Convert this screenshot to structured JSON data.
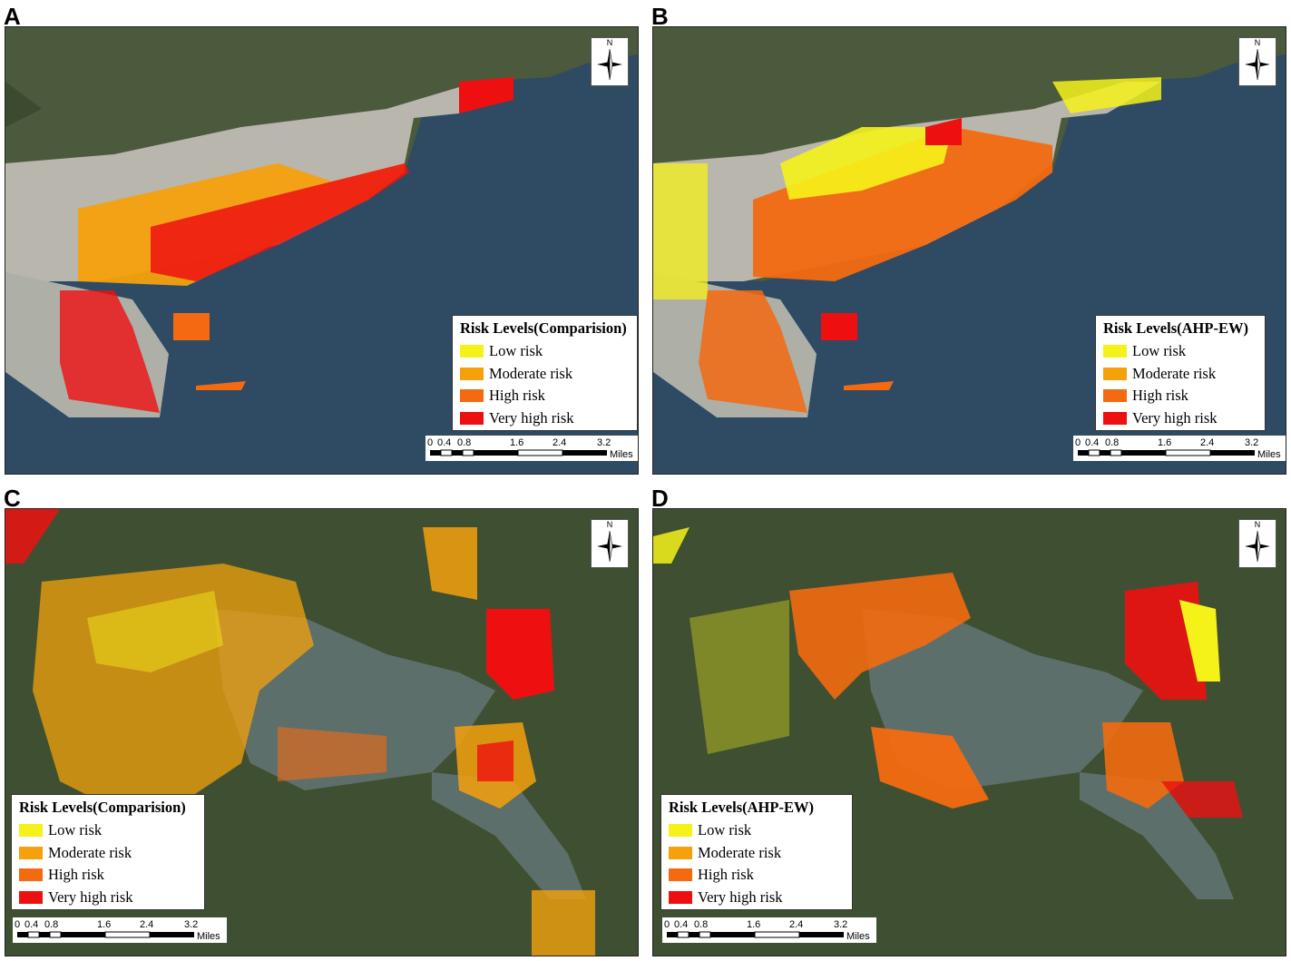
{
  "panels": [
    {
      "letter": "A",
      "legend": {
        "title": "Risk Levels(Comparision)",
        "items": [
          "Low risk",
          "Moderate risk",
          "High risk",
          "Very high risk"
        ]
      },
      "north_label": "N",
      "scale": {
        "ticks": [
          "0",
          "0.4",
          "0.8",
          "1.6",
          "2.4",
          "3.2"
        ],
        "unit": "Miles"
      }
    },
    {
      "letter": "B",
      "legend": {
        "title": "Risk Levels(AHP-EW)",
        "items": [
          "Low risk",
          "Moderate risk",
          "High risk",
          "Very high risk"
        ]
      },
      "north_label": "N",
      "scale": {
        "ticks": [
          "0",
          "0.4",
          "0.8",
          "1.6",
          "2.4",
          "3.2"
        ],
        "unit": "Miles"
      }
    },
    {
      "letter": "C",
      "legend": {
        "title": "Risk Levels(Comparision)",
        "items": [
          "Low risk",
          "Moderate risk",
          "High risk",
          "Very high risk"
        ]
      },
      "north_label": "N",
      "scale": {
        "ticks": [
          "0",
          "0.4",
          "0.8",
          "1.6",
          "2.4",
          "3.2"
        ],
        "unit": "Miles"
      }
    },
    {
      "letter": "D",
      "legend": {
        "title": "Risk Levels(AHP-EW)",
        "items": [
          "Low risk",
          "Moderate risk",
          "High risk",
          "Very high risk"
        ]
      },
      "north_label": "N",
      "scale": {
        "ticks": [
          "0",
          "0.4",
          "0.8",
          "1.6",
          "2.4",
          "3.2"
        ],
        "unit": "Miles"
      }
    }
  ],
  "colors": {
    "low": "#f5f21a",
    "moderate": "#f4a10c",
    "high": "#f36a10",
    "very_high": "#ee1010",
    "water": "#2f4a63",
    "land": "#4d5a3b",
    "urban": "#b9b8b2"
  }
}
